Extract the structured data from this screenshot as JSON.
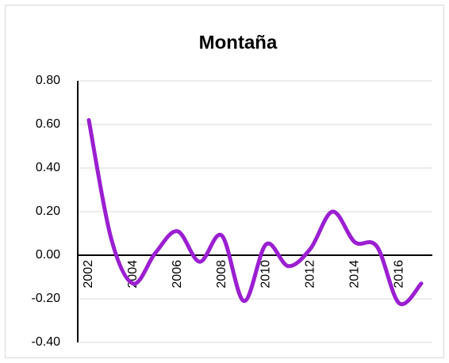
{
  "chart_data": {
    "type": "line",
    "title": "Montaña",
    "categories": [
      "2002",
      null,
      "2004",
      null,
      "2006",
      null,
      "2008",
      null,
      "2010",
      null,
      "2012",
      null,
      "2014",
      null,
      "2016",
      null
    ],
    "series": [
      {
        "name": "Montaña",
        "color": "#9b1fd1",
        "values": [
          0.62,
          0.08,
          -0.13,
          0.01,
          0.11,
          -0.03,
          0.09,
          -0.21,
          0.05,
          -0.05,
          0.03,
          0.2,
          0.06,
          0.04,
          -0.22,
          -0.13
        ]
      }
    ],
    "ylim": [
      -0.4,
      0.8
    ],
    "yticks": [
      {
        "value": -0.4,
        "label": "-0.40"
      },
      {
        "value": -0.2,
        "label": "-0.20"
      },
      {
        "value": 0,
        "label": "0.00"
      },
      {
        "value": 0.2,
        "label": "0.20"
      },
      {
        "value": 0.4,
        "label": "0.40"
      },
      {
        "value": 0.6,
        "label": "0.60"
      },
      {
        "value": 0.8,
        "label": "0.80"
      }
    ],
    "grid": true
  }
}
